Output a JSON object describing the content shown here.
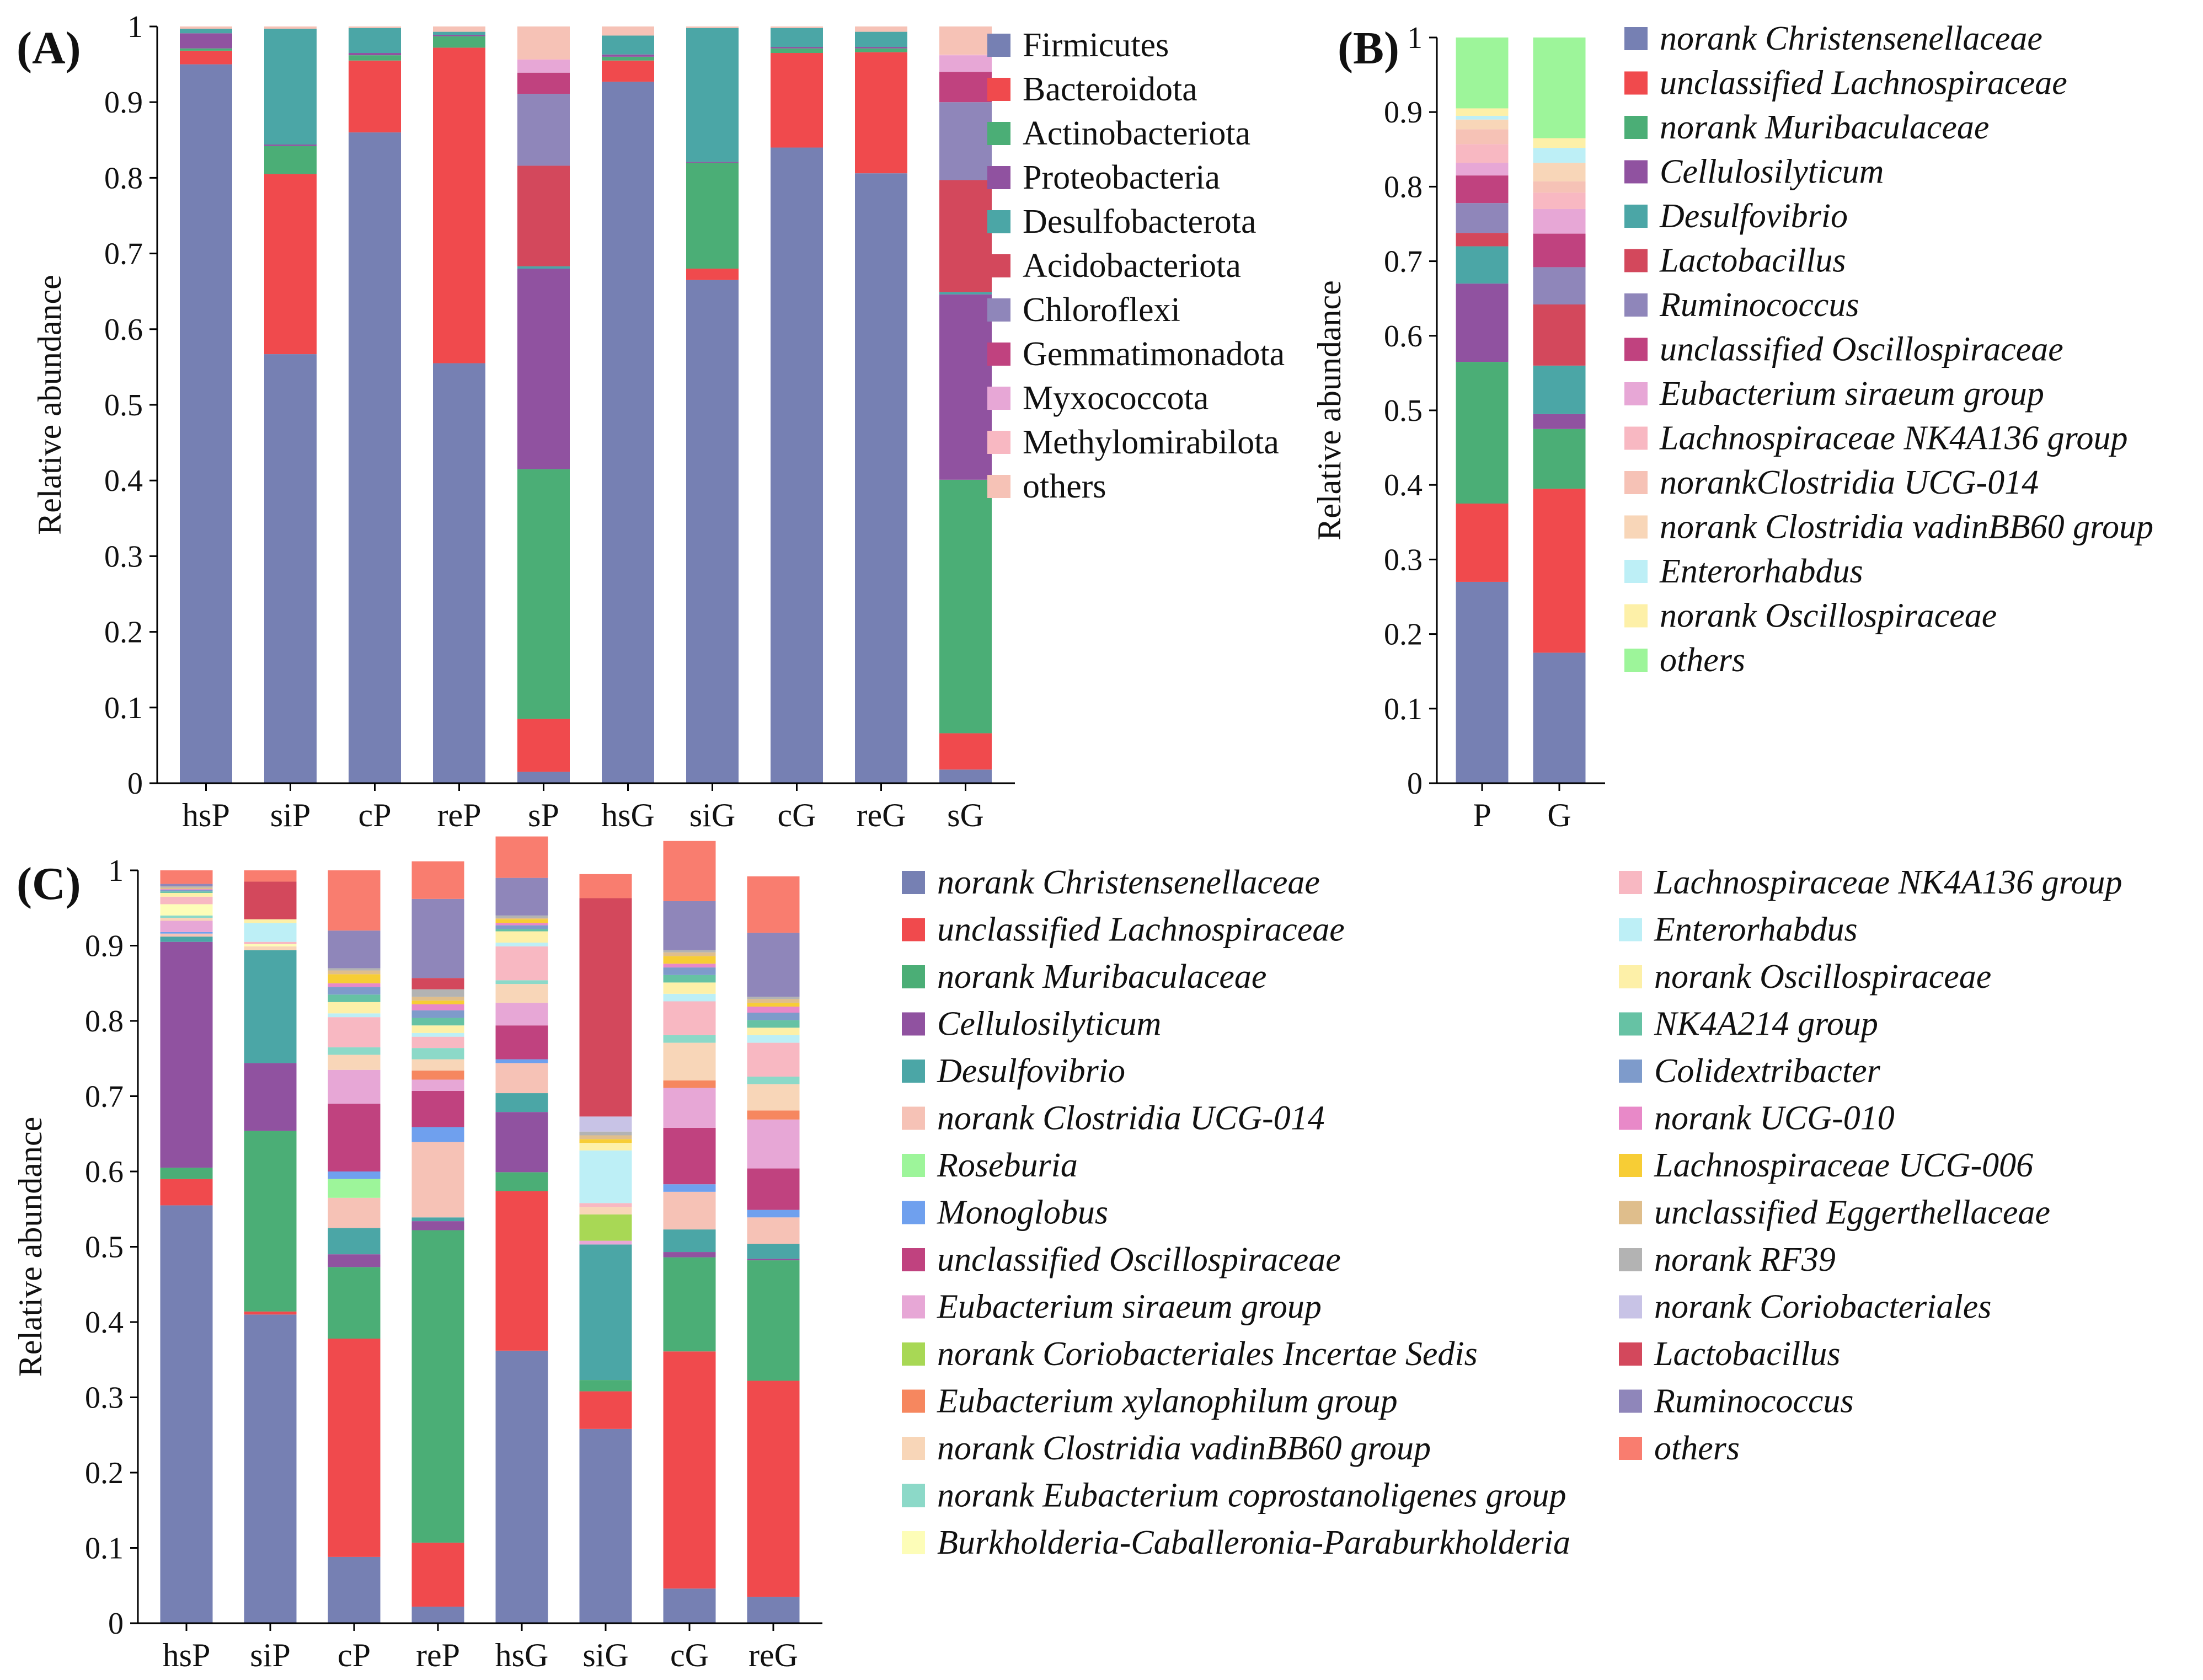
{
  "colors": {
    "Firmicutes": "#7680B3",
    "Bacteroidota": "#F04A4D",
    "Actinobacteriota": "#4BAE76",
    "Proteobacteria": "#9052A0",
    "Desulfobacterota": "#4BA6A6",
    "Acidobacteriota": "#D3485C",
    "Chloroflexi": "#8F86BA",
    "Gemmatimonadota": "#C0427F",
    "Myxococcota": "#E7A7D6",
    "Methylomirabilota": "#F8B8C2",
    "others": "#F6C2B6"
  },
  "chart_data": [
    {
      "type": "bar",
      "panel": "(A)",
      "ylabel": "Relative abundance",
      "ylim": [
        0,
        1
      ],
      "yticks": [
        "0",
        "0.1",
        "0.2",
        "0.3",
        "0.4",
        "0.5",
        "0.6",
        "0.7",
        "0.8",
        "0.9",
        "1"
      ],
      "categories": [
        "hsP",
        "siP",
        "cP",
        "reP",
        "sP",
        "hsG",
        "siG",
        "cG",
        "reG",
        "sG"
      ],
      "legend_italic": false,
      "series": [
        {
          "name": "Firmicutes",
          "color": "#7680B3",
          "values": [
            0.95,
            0.567,
            0.86,
            0.555,
            0.015,
            0.927,
            0.665,
            0.84,
            0.806,
            0.018
          ]
        },
        {
          "name": "Bacteroidota",
          "color": "#F04A4D",
          "values": [
            0.018,
            0.238,
            0.095,
            0.417,
            0.07,
            0.028,
            0.015,
            0.125,
            0.16,
            0.048
          ]
        },
        {
          "name": "Actinobacteriota",
          "color": "#4BAE76",
          "values": [
            0.003,
            0.037,
            0.007,
            0.015,
            0.33,
            0.005,
            0.14,
            0.006,
            0.005,
            0.335
          ]
        },
        {
          "name": "Proteobacteria",
          "color": "#9052A0",
          "values": [
            0.02,
            0.002,
            0.003,
            0.002,
            0.265,
            0.003,
            0.001,
            0.002,
            0.002,
            0.245
          ]
        },
        {
          "name": "Desulfobacterota",
          "color": "#4BA6A6",
          "values": [
            0.006,
            0.153,
            0.033,
            0.004,
            0.003,
            0.025,
            0.177,
            0.025,
            0.02,
            0.003
          ]
        },
        {
          "name": "Acidobacteriota",
          "color": "#D3485C",
          "values": [
            0.0,
            0.0,
            0.0,
            0.0,
            0.133,
            0.0,
            0.0,
            0.0,
            0.0,
            0.148
          ]
        },
        {
          "name": "Chloroflexi",
          "color": "#8F86BA",
          "values": [
            0.0,
            0.0,
            0.0,
            0.0,
            0.095,
            0.0,
            0.0,
            0.0,
            0.0,
            0.103
          ]
        },
        {
          "name": "Gemmatimonadota",
          "color": "#C0427F",
          "values": [
            0.0,
            0.0,
            0.0,
            0.0,
            0.028,
            0.0,
            0.0,
            0.0,
            0.0,
            0.04
          ]
        },
        {
          "name": "Myxococcota",
          "color": "#E7A7D6",
          "values": [
            0.0,
            0.0,
            0.0,
            0.0,
            0.017,
            0.0,
            0.0,
            0.0,
            0.0,
            0.022
          ]
        },
        {
          "name": "Methylomirabilota",
          "color": "#F8B8C2",
          "values": [
            0.0,
            0.0,
            0.0,
            0.0,
            0.001,
            0.0,
            0.0,
            0.0,
            0.0,
            0.001
          ]
        },
        {
          "name": "others",
          "color": "#F6C2B6",
          "values": [
            0.003,
            0.003,
            0.002,
            0.007,
            0.043,
            0.012,
            0.002,
            0.002,
            0.007,
            0.037
          ]
        }
      ]
    },
    {
      "type": "bar",
      "panel": "(B)",
      "ylabel": "Relative abundance",
      "ylim": [
        0,
        1
      ],
      "yticks": [
        "0",
        "0.1",
        "0.2",
        "0.3",
        "0.4",
        "0.5",
        "0.6",
        "0.7",
        "0.8",
        "0.9",
        "1"
      ],
      "categories": [
        "P",
        "G"
      ],
      "legend_italic": true,
      "series": [
        {
          "name": "norank Christensenellaceae",
          "color": "#7680B3",
          "values": [
            0.27,
            0.175
          ]
        },
        {
          "name": "unclassified Lachnospiraceae",
          "color": "#F04A4D",
          "values": [
            0.105,
            0.22
          ]
        },
        {
          "name": "norank Muribaculaceae",
          "color": "#4BAE76",
          "values": [
            0.19,
            0.08
          ]
        },
        {
          "name": "Cellulosilyticum",
          "color": "#9052A0",
          "values": [
            0.105,
            0.02
          ]
        },
        {
          "name": "Desulfovibrio",
          "color": "#4BA6A6",
          "values": [
            0.05,
            0.065
          ]
        },
        {
          "name": "Lactobacillus",
          "color": "#D3485C",
          "values": [
            0.018,
            0.082
          ]
        },
        {
          "name": "Ruminococcus",
          "color": "#8F86BA",
          "values": [
            0.04,
            0.05
          ]
        },
        {
          "name": "unclassified Oscillospiraceae",
          "color": "#C0427F",
          "values": [
            0.037,
            0.045
          ]
        },
        {
          "name": "Eubacterium siraeum group",
          "color": "#E7A7D6",
          "values": [
            0.017,
            0.033
          ]
        },
        {
          "name": "Lachnospiraceae NK4A136 group",
          "color": "#F8B8C2",
          "values": [
            0.025,
            0.022
          ]
        },
        {
          "name": "norankClostridia UCG-014",
          "color": "#F6C2B6",
          "values": [
            0.02,
            0.015
          ]
        },
        {
          "name": "norank Clostridia vadinBB60 group",
          "color": "#F8D6B8",
          "values": [
            0.013,
            0.025
          ]
        },
        {
          "name": "Enterorhabdus",
          "color": "#BDEFF6",
          "values": [
            0.005,
            0.02
          ]
        },
        {
          "name": "norank Oscillospiraceae",
          "color": "#FDF0A8",
          "values": [
            0.01,
            0.013
          ]
        },
        {
          "name": "others",
          "color": "#9DF59A",
          "values": [
            0.095,
            0.135
          ]
        }
      ]
    },
    {
      "type": "bar",
      "panel": "(C)",
      "ylabel": "Relative abundance",
      "ylim": [
        0,
        1
      ],
      "yticks": [
        "0",
        "0.1",
        "0.2",
        "0.3",
        "0.4",
        "0.5",
        "0.6",
        "0.7",
        "0.8",
        "0.9",
        "1"
      ],
      "categories": [
        "hsP",
        "siP",
        "cP",
        "reP",
        "hsG",
        "siG",
        "cG",
        "reG"
      ],
      "legend_italic": true,
      "series": [
        {
          "name": "norank Christensenellaceae",
          "color": "#7680B3",
          "values": [
            0.555,
            0.41,
            0.088,
            0.022,
            0.362,
            0.258,
            0.046,
            0.035
          ]
        },
        {
          "name": "unclassified Lachnospiraceae",
          "color": "#F04A4D",
          "values": [
            0.035,
            0.004,
            0.29,
            0.085,
            0.212,
            0.05,
            0.315,
            0.287
          ]
        },
        {
          "name": "norank Muribaculaceae",
          "color": "#4BAE76",
          "values": [
            0.015,
            0.24,
            0.095,
            0.415,
            0.025,
            0.015,
            0.125,
            0.16
          ]
        },
        {
          "name": "Cellulosilyticum",
          "color": "#9052A0",
          "values": [
            0.3,
            0.09,
            0.017,
            0.012,
            0.08,
            0.0,
            0.007,
            0.002
          ]
        },
        {
          "name": "Desulfovibrio",
          "color": "#4BA6A6",
          "values": [
            0.007,
            0.15,
            0.035,
            0.005,
            0.025,
            0.18,
            0.03,
            0.02
          ]
        },
        {
          "name": "norank Clostridia UCG-014",
          "color": "#F6C2B6",
          "values": [
            0.004,
            0.0,
            0.04,
            0.1,
            0.04,
            0.0,
            0.05,
            0.035
          ]
        },
        {
          "name": "Roseburia",
          "color": "#9DF59A",
          "values": [
            0.0,
            0.0,
            0.025,
            0.0,
            0.0,
            0.0,
            0.0,
            0.0
          ]
        },
        {
          "name": "Monoglobus",
          "color": "#6FA0EE",
          "values": [
            0.002,
            0.0,
            0.01,
            0.02,
            0.005,
            0.0,
            0.01,
            0.01
          ]
        },
        {
          "name": "unclassified Oscillospiraceae",
          "color": "#C0427F",
          "values": [
            0.0,
            0.0,
            0.09,
            0.048,
            0.045,
            0.0,
            0.075,
            0.055
          ]
        },
        {
          "name": "Eubacterium siraeum group",
          "color": "#E7A7D6",
          "values": [
            0.015,
            0.0,
            0.045,
            0.015,
            0.03,
            0.005,
            0.053,
            0.065
          ]
        },
        {
          "name": "norank Coriobacteriales Incertae Sedis",
          "color": "#A8D855",
          "values": [
            0.0,
            0.0,
            0.0,
            0.0,
            0.0,
            0.035,
            0.0,
            0.0
          ]
        },
        {
          "name": "Eubacterium xylanophilum group",
          "color": "#F6875F",
          "values": [
            0.0,
            0.0,
            0.0,
            0.012,
            0.0,
            0.0,
            0.01,
            0.012
          ]
        },
        {
          "name": "norank Clostridia vadinBB60 group",
          "color": "#F8D6B8",
          "values": [
            0.004,
            0.005,
            0.02,
            0.015,
            0.025,
            0.01,
            0.05,
            0.035
          ]
        },
        {
          "name": "norank Eubacterium coprostanoligenes group",
          "color": "#8CD9C8",
          "values": [
            0.003,
            0.0,
            0.01,
            0.015,
            0.005,
            0.0,
            0.01,
            0.01
          ]
        },
        {
          "name": "Burkholderia-Caballeronia-Paraburkholderia",
          "color": "#FDFDB8",
          "values": [
            0.015,
            0.003,
            0.0,
            0.0,
            0.0,
            0.0,
            0.0,
            0.0
          ]
        },
        {
          "name": "Lachnospiraceae NK4A136 group",
          "color": "#F8B8C2",
          "values": [
            0.01,
            0.003,
            0.04,
            0.015,
            0.045,
            0.005,
            0.045,
            0.045
          ]
        },
        {
          "name": "Enterorhabdus",
          "color": "#BDEFF6",
          "values": [
            0.0,
            0.025,
            0.005,
            0.005,
            0.005,
            0.07,
            0.01,
            0.01
          ]
        },
        {
          "name": "norank Oscillospiraceae",
          "color": "#FDF0A8",
          "values": [
            0.005,
            0.005,
            0.015,
            0.01,
            0.015,
            0.01,
            0.015,
            0.01
          ]
        },
        {
          "name": "NK4A214 group",
          "color": "#66C2A4",
          "values": [
            0.002,
            0.0,
            0.01,
            0.01,
            0.003,
            0.0,
            0.01,
            0.01
          ]
        },
        {
          "name": "Colidextribacter",
          "color": "#7E9BCB",
          "values": [
            0.002,
            0.0,
            0.01,
            0.01,
            0.005,
            0.0,
            0.01,
            0.01
          ]
        },
        {
          "name": "norank UCG-010",
          "color": "#E889C8",
          "values": [
            0.001,
            0.0,
            0.005,
            0.008,
            0.003,
            0.0,
            0.005,
            0.008
          ]
        },
        {
          "name": "Lachnospiraceae UCG-006",
          "color": "#F7CD35",
          "values": [
            0.0,
            0.0,
            0.012,
            0.005,
            0.005,
            0.005,
            0.01,
            0.005
          ]
        },
        {
          "name": "unclassified Eggerthellaceae",
          "color": "#DFBE8C",
          "values": [
            0.002,
            0.0,
            0.005,
            0.005,
            0.002,
            0.005,
            0.005,
            0.005
          ]
        },
        {
          "name": "norank RF39",
          "color": "#B3B3B3",
          "values": [
            0.002,
            0.0,
            0.003,
            0.01,
            0.003,
            0.005,
            0.003,
            0.003
          ]
        },
        {
          "name": "norank Coriobacteriales",
          "color": "#C8C3E6",
          "values": [
            0.0,
            0.0,
            0.0,
            0.0,
            0.0,
            0.02,
            0.0,
            0.0
          ]
        },
        {
          "name": "Lactobacillus",
          "color": "#D3485C",
          "values": [
            0.0,
            0.05,
            0.0,
            0.015,
            0.0,
            0.29,
            0.0,
            0.0
          ]
        },
        {
          "name": "Ruminococcus",
          "color": "#8F86BA",
          "values": [
            0.003,
            0.0,
            0.05,
            0.105,
            0.05,
            0.0,
            0.065,
            0.085
          ]
        },
        {
          "name": "others",
          "color": "#F97D6F",
          "values": [
            0.018,
            0.015,
            0.08,
            0.05,
            0.055,
            0.032,
            0.08,
            0.075
          ]
        }
      ]
    }
  ]
}
